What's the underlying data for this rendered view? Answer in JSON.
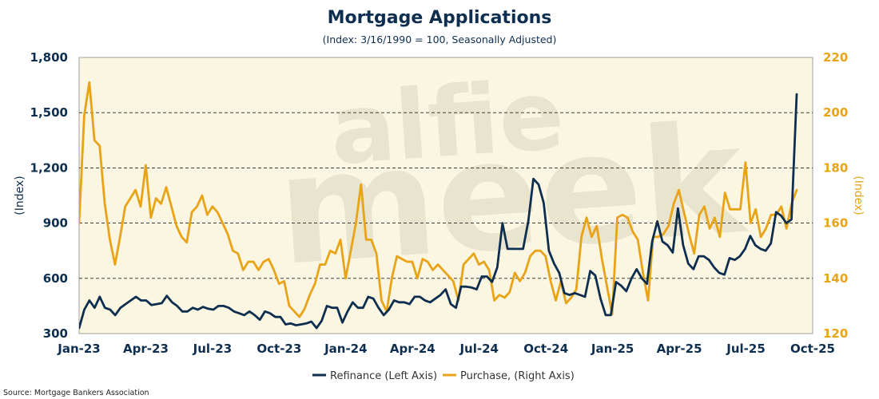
{
  "chart_data": {
    "type": "line",
    "title": "Mortgage Applications",
    "subtitle": "(Index: 3/16/1990 = 100, Seasonally Adjusted)",
    "ylabel_left": "(Index)",
    "ylabel_right": "(Index)",
    "ylim_left": [
      300,
      1800
    ],
    "ylim_right": [
      120,
      220
    ],
    "yticks_left": [
      300,
      600,
      900,
      1200,
      1500,
      1800
    ],
    "yticks_right": [
      120,
      140,
      160,
      180,
      200,
      220
    ],
    "x_tick_labels": [
      "Jan-23",
      "Apr-23",
      "Jul-23",
      "Oct-23",
      "Jan-24",
      "Apr-24",
      "Jul-24",
      "Oct-24",
      "Jan-25",
      "Apr-25",
      "Jul-25",
      "Oct-25"
    ],
    "grid": "horizontal dashed",
    "legend_position": "bottom",
    "source": "Source: Mortgage Bankers Association",
    "watermark": "alfie meek",
    "series": [
      {
        "name": "Refinance (Left Axis)",
        "axis": "left",
        "color": "#0d2e4f",
        "values": [
          330,
          430,
          480,
          440,
          500,
          440,
          430,
          400,
          440,
          460,
          480,
          500,
          480,
          480,
          455,
          460,
          465,
          505,
          470,
          450,
          420,
          420,
          440,
          430,
          445,
          435,
          430,
          450,
          450,
          440,
          420,
          410,
          400,
          420,
          400,
          375,
          420,
          410,
          390,
          390,
          350,
          355,
          345,
          350,
          355,
          365,
          330,
          370,
          450,
          440,
          440,
          360,
          420,
          470,
          440,
          440,
          500,
          490,
          440,
          400,
          430,
          480,
          470,
          470,
          460,
          500,
          500,
          480,
          470,
          490,
          510,
          540,
          460,
          440,
          555,
          555,
          550,
          540,
          610,
          610,
          580,
          660,
          900,
          760,
          760,
          760,
          760,
          910,
          1140,
          1110,
          1010,
          750,
          680,
          630,
          520,
          510,
          520,
          510,
          500,
          640,
          615,
          490,
          400,
          400,
          580,
          560,
          530,
          600,
          650,
          600,
          570,
          800,
          910,
          800,
          780,
          740,
          980,
          780,
          680,
          650,
          720,
          720,
          700,
          660,
          630,
          620,
          710,
          700,
          720,
          760,
          830,
          780,
          760,
          750,
          790,
          960,
          940,
          900,
          920,
          1600
        ]
      },
      {
        "name": "Purchase, (Right Axis)",
        "axis": "right",
        "color": "#e8a317",
        "values": [
          160,
          199,
          211,
          190,
          188,
          167,
          154,
          145,
          155,
          166,
          169,
          172,
          166,
          181,
          162,
          169,
          167,
          173,
          166,
          159,
          155,
          153,
          164,
          166,
          170,
          163,
          166,
          164,
          160,
          156,
          150,
          149,
          143,
          146,
          146,
          143,
          146,
          147,
          143,
          138,
          139,
          130,
          128,
          126,
          129,
          134,
          138,
          145,
          145,
          150,
          149,
          154,
          140,
          150,
          160,
          174,
          154,
          154,
          149,
          132,
          128,
          140,
          148,
          147,
          146,
          146,
          140,
          147,
          146,
          143,
          145,
          143,
          141,
          139,
          132,
          145,
          147,
          149,
          145,
          146,
          143,
          132,
          134,
          133,
          135,
          142,
          139,
          142,
          148,
          150,
          150,
          148,
          139,
          132,
          139,
          131,
          133,
          136,
          155,
          162,
          155,
          159,
          147,
          137,
          127,
          162,
          163,
          162,
          157,
          154,
          142,
          132,
          155,
          155,
          156,
          159,
          167,
          172,
          164,
          156,
          149,
          163,
          166,
          158,
          162,
          155,
          171,
          165,
          165,
          165,
          182,
          160,
          165,
          155,
          158,
          163,
          163,
          166,
          158,
          167,
          172
        ]
      }
    ]
  }
}
